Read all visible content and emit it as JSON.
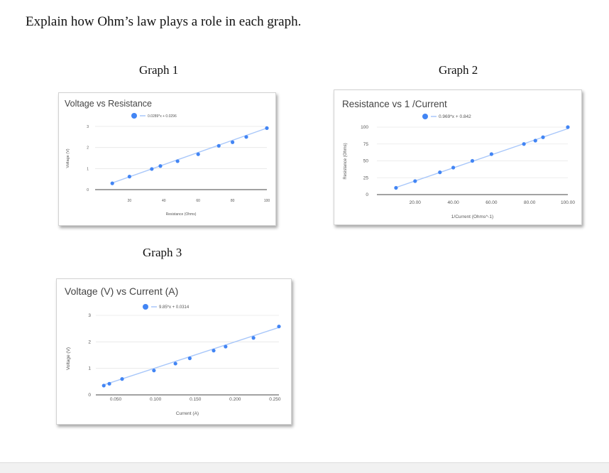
{
  "question": "Explain how Ohm’s law plays a role in each graph.",
  "graph_titles": [
    "Graph 1",
    "Graph 2",
    "Graph 3"
  ],
  "colors": {
    "point": "#4285f4",
    "trendline": "#a8c7fa",
    "grid": "#e6e6e6",
    "axis": "#444444",
    "label": "#555555"
  },
  "chart_data": [
    {
      "type": "scatter",
      "title": "Voltage vs Resistance",
      "legend": "0.0289*x + 0.0296",
      "xlabel": "Resistance (Ohms)",
      "ylabel": "Voltage (V)",
      "xlim": [
        0,
        100
      ],
      "ylim": [
        0,
        3
      ],
      "xticks": [
        "20",
        "40",
        "60",
        "80",
        "100"
      ],
      "yticks": [
        "0",
        "1",
        "2",
        "3"
      ],
      "trendline": {
        "slope": 0.0289,
        "intercept": 0.0296
      },
      "x": [
        10,
        20,
        33,
        38,
        48,
        60,
        72,
        80,
        88,
        100
      ],
      "y": [
        0.3,
        0.62,
        0.98,
        1.12,
        1.35,
        1.68,
        2.08,
        2.25,
        2.5,
        2.92
      ]
    },
    {
      "type": "scatter",
      "title": "Resistance vs 1 /Current",
      "legend": "0.969*x + 0.842",
      "xlabel": "1/Current (Ohms^-1)",
      "ylabel": "Resistance (Ohms)",
      "xlim": [
        0,
        100
      ],
      "ylim": [
        0,
        100
      ],
      "xticks": [
        "20.00",
        "40.00",
        "60.00",
        "80.00",
        "100.00"
      ],
      "yticks": [
        "0",
        "25",
        "50",
        "75",
        "100"
      ],
      "trendline": {
        "slope": 0.969,
        "intercept": 0.842
      },
      "x": [
        10,
        20,
        33,
        40,
        50,
        60,
        77,
        83,
        87,
        100
      ],
      "y": [
        10,
        20,
        33,
        40,
        50,
        60,
        75,
        80,
        85,
        100
      ]
    },
    {
      "type": "scatter",
      "title": "Voltage (V) vs Current (A)",
      "legend": "9.85*x + 0.0314",
      "xlabel": "Current (A)",
      "ylabel": "Voltage (V)",
      "xlim": [
        0.025,
        0.255
      ],
      "ylim": [
        0,
        3
      ],
      "xticks": [
        "0.050",
        "0.100",
        "0.150",
        "0.200",
        "0.250"
      ],
      "xtick_values": [
        0.05,
        0.1,
        0.15,
        0.2,
        0.25
      ],
      "yticks": [
        "0",
        "1",
        "2",
        "3"
      ],
      "trendline": {
        "slope": 9.85,
        "intercept": 0.0314
      },
      "x": [
        0.035,
        0.042,
        0.058,
        0.098,
        0.125,
        0.143,
        0.173,
        0.188,
        0.223,
        0.255
      ],
      "y": [
        0.35,
        0.42,
        0.6,
        0.92,
        1.18,
        1.38,
        1.67,
        1.82,
        2.15,
        2.58
      ]
    }
  ]
}
